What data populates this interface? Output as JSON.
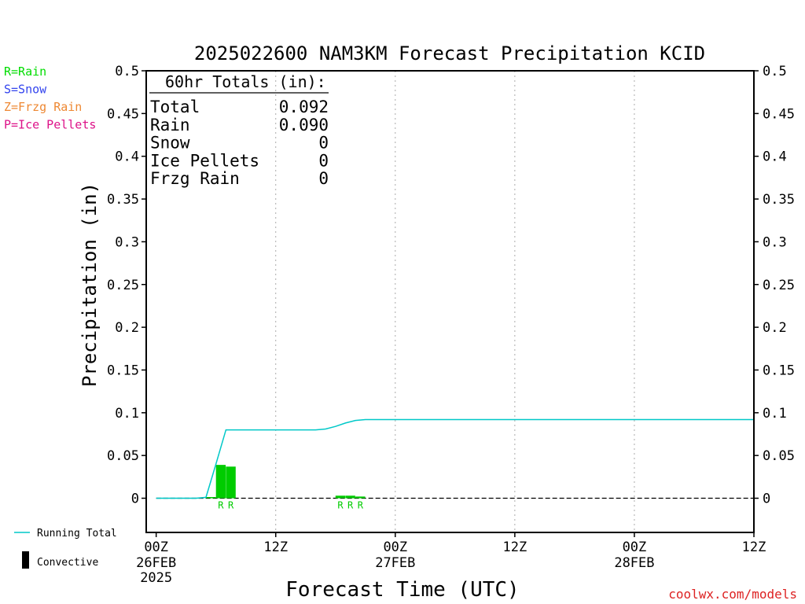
{
  "chart_data": {
    "type": "bar",
    "title": "2025022600 NAM3KM Forecast Precipitation KCID",
    "xlabel": "Forecast Time (UTC)",
    "ylabel": "Precipitation (in)",
    "ylim": [
      -0.04,
      0.5
    ],
    "yticks": [
      {
        "v": 0.5,
        "label": "0.5"
      },
      {
        "v": 0.45,
        "label": "0.45"
      },
      {
        "v": 0.4,
        "label": "0.4"
      },
      {
        "v": 0.35,
        "label": "0.35"
      },
      {
        "v": 0.3,
        "label": "0.3"
      },
      {
        "v": 0.25,
        "label": "0.25"
      },
      {
        "v": 0.2,
        "label": "0.2"
      },
      {
        "v": 0.15,
        "label": "0.15"
      },
      {
        "v": 0.1,
        "label": "0.1"
      },
      {
        "v": 0.05,
        "label": "0.05"
      },
      {
        "v": 0,
        "label": "0"
      }
    ],
    "xlim_hours": [
      -1,
      60
    ],
    "xticks": [
      {
        "h": 0,
        "l1": "00Z",
        "l2": "26FEB",
        "l3": "2025"
      },
      {
        "h": 12,
        "l1": "12Z",
        "l2": "",
        "l3": ""
      },
      {
        "h": 24,
        "l1": "00Z",
        "l2": "27FEB",
        "l3": ""
      },
      {
        "h": 36,
        "l1": "12Z",
        "l2": "",
        "l3": ""
      },
      {
        "h": 48,
        "l1": "00Z",
        "l2": "28FEB",
        "l3": ""
      },
      {
        "h": 60,
        "l1": "12Z",
        "l2": "",
        "l3": ""
      }
    ],
    "grid_hours": [
      12,
      24,
      36,
      48
    ],
    "bars": [
      {
        "h": 5,
        "value": 0.001,
        "ptype": ""
      },
      {
        "h": 6,
        "value": 0.039,
        "ptype": "R"
      },
      {
        "h": 7,
        "value": 0.037,
        "ptype": "R"
      },
      {
        "h": 18,
        "value": 0.003,
        "ptype": "R"
      },
      {
        "h": 19,
        "value": 0.003,
        "ptype": "R"
      },
      {
        "h": 20,
        "value": 0.002,
        "ptype": "R"
      }
    ],
    "series": [
      {
        "name": "Running Total",
        "color": "#00c8c8",
        "x": [
          0,
          1,
          2,
          3,
          4,
          5,
          6,
          7,
          8,
          9,
          10,
          11,
          12,
          13,
          14,
          15,
          16,
          17,
          18,
          19,
          20,
          21,
          22,
          24,
          30,
          36,
          42,
          48,
          54,
          60
        ],
        "y": [
          0,
          0,
          0,
          0,
          0,
          0.001,
          0.04,
          0.08,
          0.08,
          0.08,
          0.08,
          0.08,
          0.08,
          0.08,
          0.08,
          0.08,
          0.08,
          0.081,
          0.084,
          0.088,
          0.091,
          0.092,
          0.092,
          0.092,
          0.092,
          0.092,
          0.092,
          0.092,
          0.092,
          0.092
        ]
      }
    ],
    "bar_color": "#00cc00",
    "zero_line_style": "dashed",
    "grid": "vertical dotted"
  },
  "totals": {
    "header": "60hr Totals (in):",
    "rows": [
      {
        "label": "Total",
        "value": "0.092"
      },
      {
        "label": "Rain",
        "value": "0.090"
      },
      {
        "label": "Snow",
        "value": "0"
      },
      {
        "label": "Ice Pellets",
        "value": "0"
      },
      {
        "label": "Frzg Rain",
        "value": "0"
      }
    ]
  },
  "ptype_legend": [
    {
      "text": "R=Rain",
      "color": "#00dd00"
    },
    {
      "text": "S=Snow",
      "color": "#3344ee"
    },
    {
      "text": "Z=Frzg Rain",
      "color": "#ee8833"
    },
    {
      "text": "P=Ice Pellets",
      "color": "#dd1188"
    }
  ],
  "legend": {
    "running_total": "Running Total",
    "convective": "Convective"
  },
  "credit": "coolwx.com/models"
}
